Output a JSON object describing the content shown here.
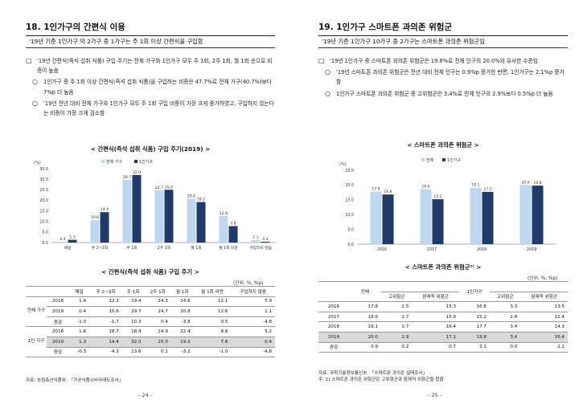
{
  "left": {
    "section_title": "18. 1인가구의 간편식 이용",
    "summary": "'19년 기준 1인가구 약 2가구 중 1가구는 주 1회 이상 간편식을 구입함",
    "bullets": [
      {
        "marker": "□",
        "text": "'19년 간편식(즉석 섭취 식품) 구입 주기는 전체 가구와 1인가구 모두 주 1회, 2주 1회, 월 1회 순으로 비중이 높음"
      },
      {
        "marker": "○",
        "text": "1인가구 중 주 1회 이상 간편식(즉석 섭취 식품)을 구입하는 비중은 47.7%로 전체 가구(40.7%)보다 7%p 더 높음"
      },
      {
        "marker": "○",
        "text": "'19년 전년 대비 전체 가구와 1인가구 모두 주 1회 구입 비중이 가장 크게 증가하였고, 구입하지 않는다는 비중이 가장 크게 감소함"
      }
    ],
    "chart_title": "< 간편식(즉석 섭취 식품) 구입 주기(2019) >",
    "chart_unit": "(%)",
    "table_title": "< 간편식(즉석 섭취 식품) 구입 주기 >",
    "table_unit": "(단위: %, %p)",
    "table_headers": [
      "",
      "",
      "매일",
      "주 2~3회",
      "주 1회",
      "2주 1회",
      "월 1회",
      "월 1회 미만",
      "구입하지 않음"
    ],
    "group_all": "전체 가구",
    "group_one": "1인 가구",
    "rows_all": [
      {
        "label": "2018",
        "values": [
          "1.4",
          "12.3",
          "19.4",
          "24.3",
          "24.6",
          "12.1",
          "5.9"
        ]
      },
      {
        "label": "2019",
        "values": [
          "0.4",
          "10.6",
          "29.7",
          "24.7",
          "20.8",
          "12.6",
          "1.1"
        ]
      },
      {
        "label": "증감",
        "values": [
          "-1.0",
          "-1.7",
          "10.3",
          "0.4",
          "-3.8",
          "0.5",
          "-4.8"
        ]
      }
    ],
    "rows_one": [
      {
        "label": "2018",
        "values": [
          "1.6",
          "18.7",
          "18.4",
          "24.9",
          "22.4",
          "8.8",
          "5.2"
        ]
      },
      {
        "label": "2019",
        "values": [
          "1.3",
          "14.4",
          "32.0",
          "25.0",
          "19.2",
          "7.8",
          "0.4"
        ]
      },
      {
        "label": "증감",
        "values": [
          "-0.3",
          "-4.3",
          "13.6",
          "0.1",
          "-3.2",
          "-1.0",
          "-4.8"
        ]
      }
    ],
    "source": "자료: 농림축산식품부, 「가공식품소비자태도조사」",
    "page_number": "- 24 -"
  },
  "right": {
    "section_title": "19. 1인가구 스마트폰 과의존 위험군",
    "summary": "'19년 기준 1인가구 10가구 중 2가구는 스마트폰 과의존 위험군임",
    "bullets": [
      {
        "marker": "□",
        "text": "'19년 1인가구 중 스마트폰 과의존 위험군은 19.8%로 전체 인구의 20.0%와 유사한 수준임"
      },
      {
        "marker": "○",
        "text": "'19년 스마트폰 과의존 위험군은 전년 대비 전체 인구는 0.9%p 증가한 반면, 1인가구는 2.1%p 증가함"
      },
      {
        "marker": "○",
        "text": "1인가구 스마트폰 과의존 위험군 중 고위험군은 3.4%로 전체 인구의 2.9%보다 0.5%p 더 높음"
      }
    ],
    "chart_title": "< 스마트폰 과의존 위험군 >",
    "chart_unit": "(%)",
    "table_title": "< 스마트폰 과의존 위험군¹⁾ >",
    "table_unit": "(단위: %, %p)",
    "header_all": "전체",
    "header_one": "1인가구",
    "sub_headers": [
      "고위험군",
      "잠재적 위험군",
      "고위험군",
      "잠재적 위험군"
    ],
    "rows": [
      {
        "label": "2016",
        "values": [
          "17.8",
          "2.5",
          "15.3",
          "16.8",
          "3.3",
          "13.5"
        ]
      },
      {
        "label": "2017",
        "values": [
          "18.6",
          "2.7",
          "15.9",
          "15.2",
          "2.8",
          "12.4"
        ]
      },
      {
        "label": "2018",
        "values": [
          "19.1",
          "2.7",
          "16.4",
          "17.7",
          "3.4",
          "14.3"
        ]
      },
      {
        "label": "2019",
        "values": [
          "20.0",
          "2.9",
          "17.1",
          "19.8",
          "3.4",
          "16.4"
        ]
      },
      {
        "label": "증감",
        "values": [
          "0.9",
          "0.2",
          "0.7",
          "2.1",
          "0.0",
          "2.1"
        ]
      }
    ],
    "source_1": "자료: 과학기술정보통신부, 「스마트폰 과의존 실태조사」",
    "source_2": "주: 1) 스마트폰 과의존 위험군은 고위험군과 잠재적 위험군을 합함",
    "page_number": "- 25 -"
  },
  "chart_data": [
    {
      "type": "bar",
      "title": "< 간편식(즉석 섭취 식품) 구입 주기(2019) >",
      "ylabel": "(%)",
      "ylim": [
        0,
        35
      ],
      "yticks": [
        "0.0",
        "5.0",
        "10.0",
        "15.0",
        "20.0",
        "25.0",
        "30.0",
        "35.0"
      ],
      "categories": [
        "매일",
        "주 2~3회",
        "주 1회",
        "2주 1회",
        "월 1회",
        "월 1회 미만",
        "구입하지 않음"
      ],
      "series": [
        {
          "name": "전체 가구",
          "color": "#bdd7ee",
          "values": [
            0.4,
            10.6,
            29.7,
            24.7,
            20.8,
            12.6,
            1.1
          ]
        },
        {
          "name": "1인가구",
          "color": "#1f3a6b",
          "values": [
            1.3,
            14.4,
            32.0,
            25.0,
            19.2,
            7.8,
            0.4
          ]
        }
      ],
      "legend": "top"
    },
    {
      "type": "bar",
      "title": "< 스마트폰 과의존 위험군 >",
      "ylabel": "(%)",
      "ylim": [
        0,
        25
      ],
      "yticks": [
        "0.0",
        "5.0",
        "10.0",
        "15.0",
        "20.0",
        "25.0"
      ],
      "categories": [
        "2016",
        "2017",
        "2018",
        "2019"
      ],
      "series": [
        {
          "name": "전체",
          "color": "#bdd7ee",
          "values": [
            17.8,
            18.6,
            19.1,
            20.0
          ]
        },
        {
          "name": "1인가구",
          "color": "#1f3a6b",
          "values": [
            16.8,
            15.2,
            17.7,
            19.8
          ]
        }
      ],
      "legend": "top"
    }
  ]
}
